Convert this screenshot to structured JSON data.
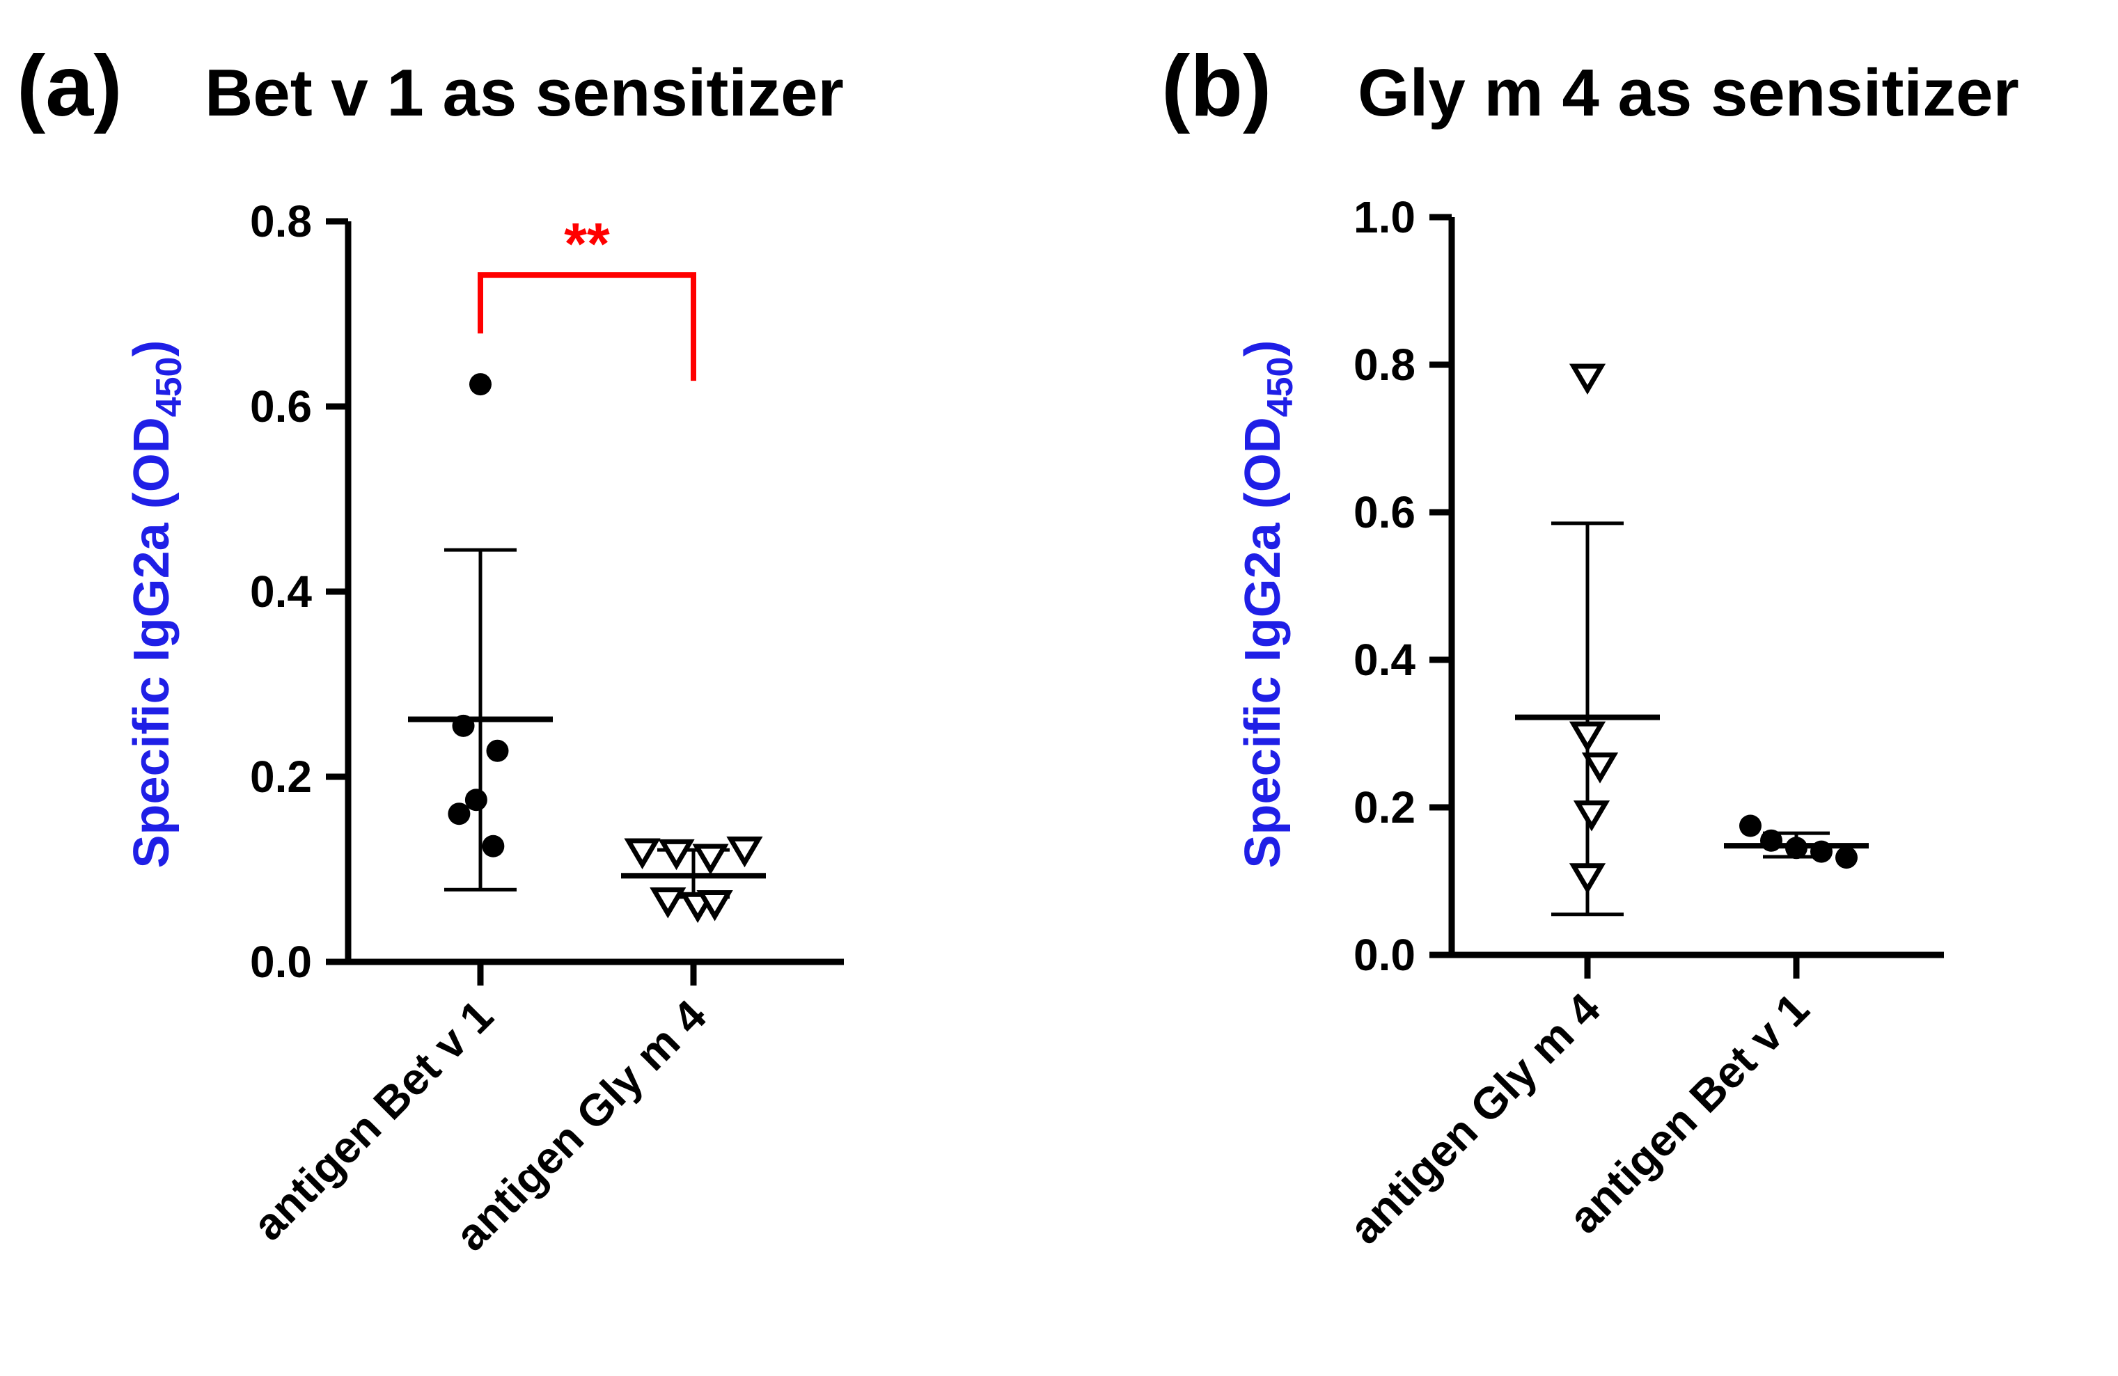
{
  "chart_data": [
    {
      "type": "scatter",
      "panel_label": "(a)",
      "title": "Bet v 1 as sensitizer",
      "ylabel": "Specific IgG2a (OD",
      "ylabel_sub": "450",
      "ylabel_end": ")",
      "ylim": [
        0,
        0.8
      ],
      "yticks": [
        "0.0",
        "0.2",
        "0.4",
        "0.6",
        "0.8"
      ],
      "categories": [
        "antigen Bet v 1",
        "antigen Gly m 4"
      ],
      "series": [
        {
          "marker": "circle",
          "values": [
            0.624,
            0.255,
            0.228,
            0.175,
            0.16,
            0.125
          ],
          "jitter": [
            0,
            -0.08,
            0.08,
            -0.02,
            -0.1,
            0.06
          ],
          "mean": 0.262,
          "err_low": 0.078,
          "err_high": 0.445
        },
        {
          "marker": "triangle-down",
          "values": [
            0.118,
            0.117,
            0.12,
            0.112,
            0.065,
            0.06,
            0.062
          ],
          "jitter": [
            -0.24,
            -0.08,
            0.24,
            0.08,
            -0.12,
            0.02,
            0.1
          ],
          "mean": 0.093,
          "err_low": 0.07,
          "err_high": 0.121
        }
      ],
      "significance": {
        "label": "**",
        "from": 0,
        "to": 1,
        "level": 0.742
      }
    },
    {
      "type": "scatter",
      "panel_label": "(b)",
      "title": "Gly m 4 as sensitizer",
      "ylabel": "Specific IgG2a (OD",
      "ylabel_sub": "450",
      "ylabel_end": ")",
      "ylim": [
        0,
        1.0
      ],
      "yticks": [
        "0.0",
        "0.2",
        "0.4",
        "0.6",
        "0.8",
        "1.0"
      ],
      "categories": [
        "antigen Gly m 4",
        "antigen Bet v 1"
      ],
      "series": [
        {
          "marker": "triangle-down",
          "values": [
            0.782,
            0.297,
            0.255,
            0.19,
            0.105
          ],
          "jitter": [
            0,
            0,
            0.06,
            0.02,
            0
          ],
          "mean": 0.322,
          "err_low": 0.055,
          "err_high": 0.585
        },
        {
          "marker": "circle",
          "values": [
            0.175,
            0.155,
            0.145,
            0.14,
            0.132
          ],
          "jitter": [
            -0.22,
            -0.12,
            0,
            0.12,
            0.24
          ],
          "mean": 0.148,
          "err_low": 0.133,
          "err_high": 0.165
        }
      ]
    }
  ]
}
